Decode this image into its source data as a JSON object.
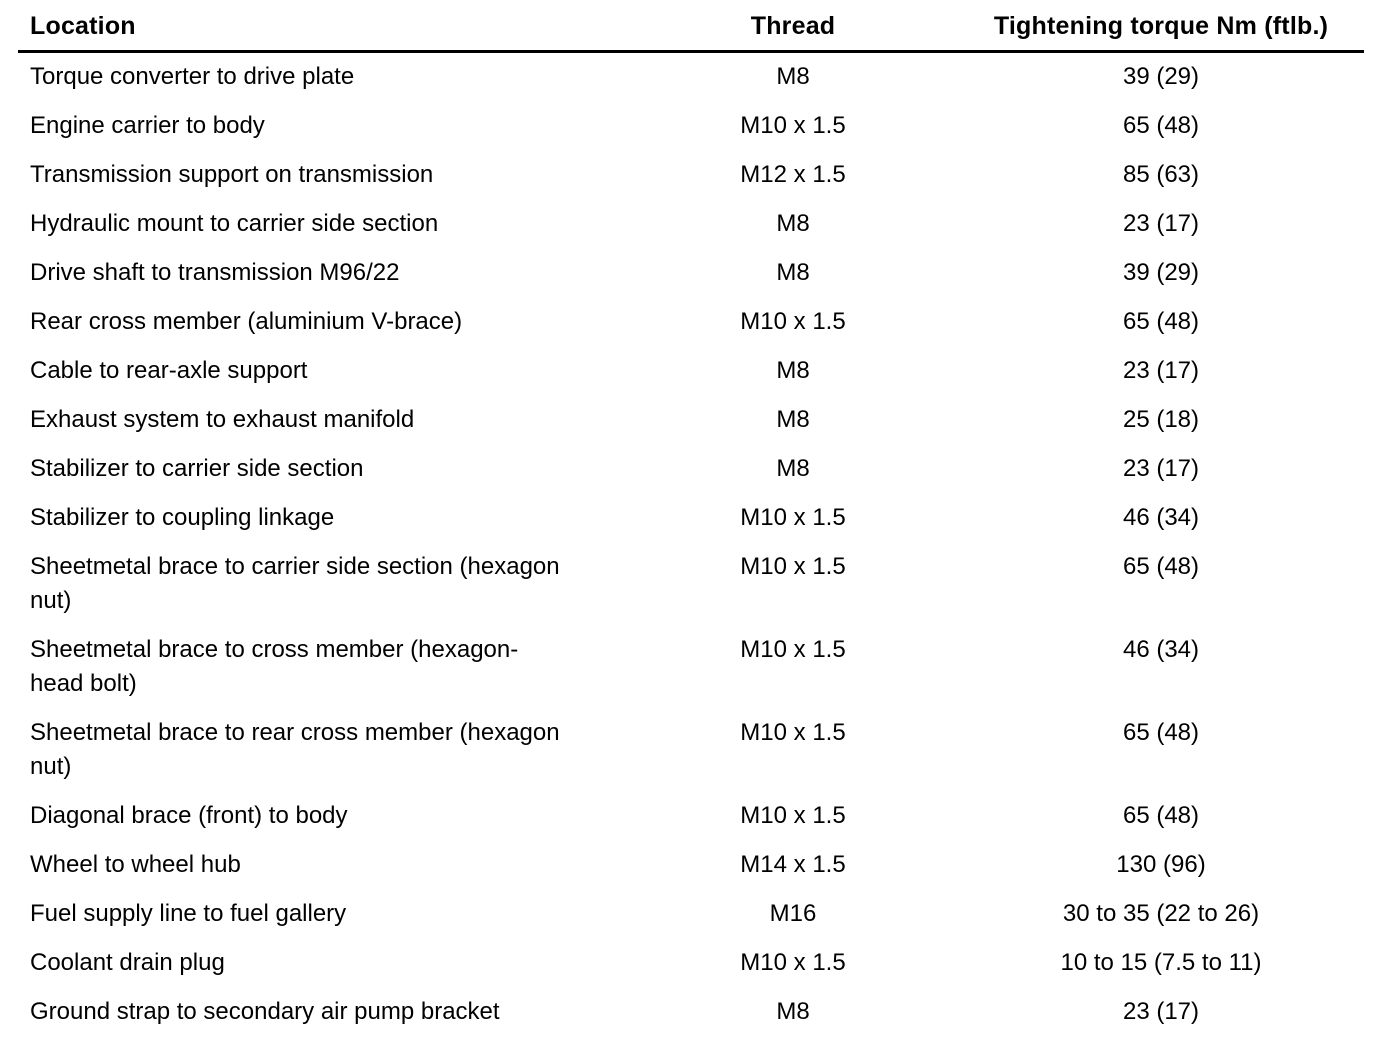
{
  "table": {
    "columns": [
      "Location",
      "Thread",
      "Tightening torque Nm (ftlb.)"
    ],
    "rows": [
      {
        "location": "Torque converter to drive plate",
        "thread": "M8",
        "torque": "39 (29)"
      },
      {
        "location": "Engine carrier to body",
        "thread": "M10 x 1.5",
        "torque": "65 (48)"
      },
      {
        "location": "Transmission support on transmission",
        "thread": "M12 x 1.5",
        "torque": "85 (63)"
      },
      {
        "location": "Hydraulic mount to carrier side section",
        "thread": "M8",
        "torque": "23 (17)"
      },
      {
        "location": "Drive shaft to transmission M96/22",
        "thread": "M8",
        "torque": "39 (29)"
      },
      {
        "location": "Rear cross member (aluminium V-brace)",
        "thread": "M10 x 1.5",
        "torque": "65 (48)"
      },
      {
        "location": "Cable to rear-axle support",
        "thread": "M8",
        "torque": "23 (17)"
      },
      {
        "location": "Exhaust system to exhaust manifold",
        "thread": "M8",
        "torque": "25 (18)"
      },
      {
        "location": "Stabilizer to carrier side section",
        "thread": "M8",
        "torque": "23 (17)"
      },
      {
        "location": "Stabilizer to coupling linkage",
        "thread": "M10 x 1.5",
        "torque": "46 (34)"
      },
      {
        "location": "Sheetmetal brace to carrier side section (hexagon\nnut)",
        "thread": "M10 x 1.5",
        "torque": "65 (48)"
      },
      {
        "location": "Sheetmetal brace to cross member (hexagon-\nhead bolt)",
        "thread": "M10 x 1.5",
        "torque": "46 (34)"
      },
      {
        "location": "Sheetmetal brace to rear cross member (hexagon\nnut)",
        "thread": "M10 x 1.5",
        "torque": "65 (48)"
      },
      {
        "location": "Diagonal brace (front) to body",
        "thread": "M10 x 1.5",
        "torque": "65 (48)"
      },
      {
        "location": "Wheel to wheel hub",
        "thread": "M14 x 1.5",
        "torque": "130 (96)"
      },
      {
        "location": "Fuel supply line to fuel gallery",
        "thread": "M16",
        "torque": "30 to 35 (22 to 26)"
      },
      {
        "location": "Coolant drain plug",
        "thread": "M10 x 1.5",
        "torque": "10 to 15 (7.5 to 11)"
      },
      {
        "location": "Ground strap to secondary air pump bracket",
        "thread": "M8",
        "torque": "23 (17)"
      }
    ]
  }
}
